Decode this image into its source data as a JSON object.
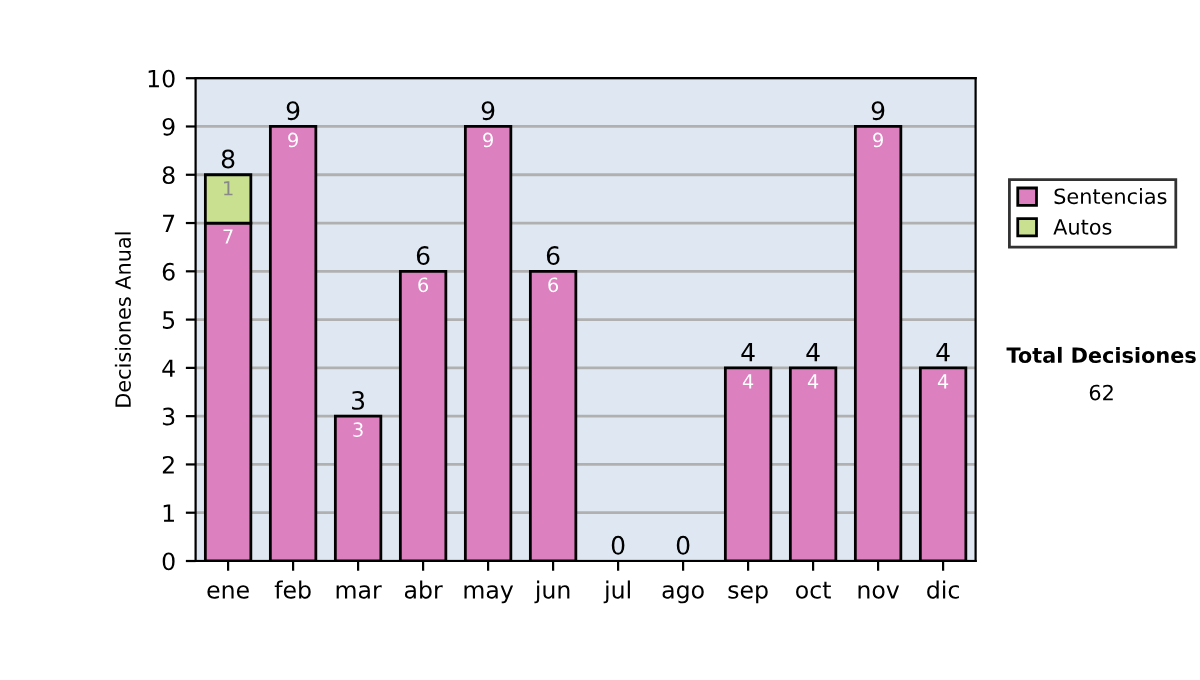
{
  "chart_data": {
    "type": "bar",
    "stacked": true,
    "ylabel": "Decisiones Anual",
    "categories": [
      "ene",
      "feb",
      "mar",
      "abr",
      "may",
      "jun",
      "jul",
      "ago",
      "sep",
      "oct",
      "nov",
      "dic"
    ],
    "series": [
      {
        "name": "Sentencias",
        "color": "#dd80c0",
        "values": [
          7,
          9,
          3,
          6,
          9,
          6,
          0,
          0,
          4,
          4,
          9,
          4
        ],
        "value_labels": [
          "7",
          "9",
          "3",
          "6",
          "9",
          "6",
          null,
          null,
          "4",
          "4",
          "9",
          "4"
        ]
      },
      {
        "name": "Autos",
        "color": "#c8e090",
        "values": [
          1,
          null,
          null,
          null,
          null,
          null,
          null,
          null,
          null,
          null,
          null,
          null
        ],
        "value_labels": [
          "1",
          null,
          null,
          null,
          null,
          null,
          null,
          null,
          null,
          null,
          null,
          null
        ]
      }
    ],
    "totals": [
      "8",
      "9",
      "3",
      "6",
      "9",
      "6",
      "0",
      "0",
      "4",
      "4",
      "9",
      "4"
    ],
    "ylim": [
      0,
      10
    ],
    "yticks": [
      0,
      1,
      2,
      3,
      4,
      5,
      6,
      7,
      8,
      9,
      10
    ],
    "grid": "y",
    "legend": "right",
    "annotations": [
      "Total Decisiones",
      "62"
    ]
  }
}
